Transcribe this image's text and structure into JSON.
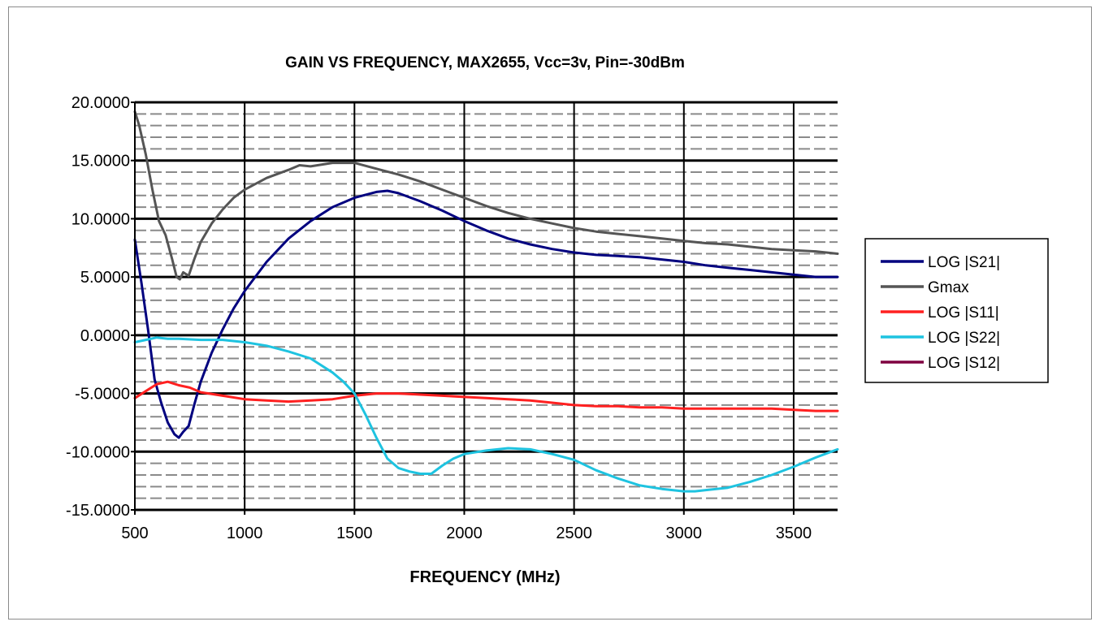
{
  "chart_data": {
    "type": "line",
    "title": "GAIN VS FREQUENCY, MAX2655, Vcc=3v, Pin=-30dBm",
    "xlabel": "FREQUENCY (MHz)",
    "ylabel": "",
    "xlim": [
      500,
      3700
    ],
    "ylim": [
      -15,
      20
    ],
    "x_ticks": [
      "500",
      "1000",
      "1500",
      "2000",
      "2500",
      "3000",
      "3500"
    ],
    "y_ticks": [
      "20.0000",
      "15.0000",
      "10.0000",
      "5.0000",
      "0.0000",
      "-5.0000",
      "-10.0000",
      "-15.0000"
    ],
    "grid": true,
    "legend_position": "right",
    "series": [
      {
        "name": "LOG |S21|",
        "color": "#00007f",
        "points": [
          [
            500,
            8.2
          ],
          [
            530,
            4.5
          ],
          [
            560,
            0.5
          ],
          [
            590,
            -3.8
          ],
          [
            620,
            -5.8
          ],
          [
            650,
            -7.5
          ],
          [
            680,
            -8.5
          ],
          [
            700,
            -8.8
          ],
          [
            720,
            -8.3
          ],
          [
            745,
            -7.8
          ],
          [
            770,
            -6.0
          ],
          [
            800,
            -4.0
          ],
          [
            850,
            -1.5
          ],
          [
            900,
            0.5
          ],
          [
            950,
            2.3
          ],
          [
            1000,
            3.8
          ],
          [
            1100,
            6.3
          ],
          [
            1200,
            8.3
          ],
          [
            1300,
            9.8
          ],
          [
            1400,
            11.0
          ],
          [
            1500,
            11.8
          ],
          [
            1600,
            12.3
          ],
          [
            1650,
            12.4
          ],
          [
            1700,
            12.2
          ],
          [
            1800,
            11.5
          ],
          [
            1900,
            10.7
          ],
          [
            2000,
            9.8
          ],
          [
            2100,
            9.0
          ],
          [
            2200,
            8.3
          ],
          [
            2300,
            7.8
          ],
          [
            2400,
            7.4
          ],
          [
            2500,
            7.1
          ],
          [
            2600,
            6.9
          ],
          [
            2700,
            6.8
          ],
          [
            2800,
            6.7
          ],
          [
            2900,
            6.5
          ],
          [
            3000,
            6.3
          ],
          [
            3100,
            6.0
          ],
          [
            3200,
            5.8
          ],
          [
            3300,
            5.6
          ],
          [
            3400,
            5.4
          ],
          [
            3500,
            5.2
          ],
          [
            3600,
            5.0
          ],
          [
            3700,
            5.0
          ]
        ]
      },
      {
        "name": "Gmax",
        "color": "#555555",
        "points": [
          [
            500,
            19.2
          ],
          [
            520,
            18.0
          ],
          [
            550,
            15.5
          ],
          [
            580,
            12.5
          ],
          [
            610,
            9.8
          ],
          [
            640,
            8.6
          ],
          [
            670,
            6.5
          ],
          [
            690,
            5.0
          ],
          [
            705,
            4.8
          ],
          [
            720,
            5.4
          ],
          [
            745,
            5.1
          ],
          [
            770,
            6.5
          ],
          [
            800,
            8.0
          ],
          [
            850,
            9.6
          ],
          [
            900,
            10.8
          ],
          [
            950,
            11.8
          ],
          [
            1000,
            12.5
          ],
          [
            1100,
            13.5
          ],
          [
            1200,
            14.2
          ],
          [
            1250,
            14.6
          ],
          [
            1300,
            14.5
          ],
          [
            1400,
            14.8
          ],
          [
            1500,
            14.8
          ],
          [
            1600,
            14.3
          ],
          [
            1700,
            13.8
          ],
          [
            1800,
            13.2
          ],
          [
            1900,
            12.5
          ],
          [
            2000,
            11.8
          ],
          [
            2100,
            11.1
          ],
          [
            2200,
            10.5
          ],
          [
            2300,
            10.0
          ],
          [
            2400,
            9.6
          ],
          [
            2500,
            9.2
          ],
          [
            2600,
            8.9
          ],
          [
            2700,
            8.7
          ],
          [
            2800,
            8.5
          ],
          [
            2900,
            8.3
          ],
          [
            3000,
            8.1
          ],
          [
            3100,
            7.9
          ],
          [
            3200,
            7.8
          ],
          [
            3300,
            7.6
          ],
          [
            3400,
            7.4
          ],
          [
            3500,
            7.3
          ],
          [
            3600,
            7.2
          ],
          [
            3700,
            7.0
          ]
        ]
      },
      {
        "name": "LOG |S11|",
        "color": "#ff2020",
        "points": [
          [
            500,
            -5.4
          ],
          [
            550,
            -4.8
          ],
          [
            600,
            -4.2
          ],
          [
            650,
            -4.0
          ],
          [
            700,
            -4.3
          ],
          [
            750,
            -4.5
          ],
          [
            800,
            -4.9
          ],
          [
            900,
            -5.2
          ],
          [
            1000,
            -5.5
          ],
          [
            1100,
            -5.6
          ],
          [
            1200,
            -5.7
          ],
          [
            1300,
            -5.6
          ],
          [
            1400,
            -5.5
          ],
          [
            1500,
            -5.2
          ],
          [
            1600,
            -5.0
          ],
          [
            1700,
            -5.0
          ],
          [
            1800,
            -5.1
          ],
          [
            1900,
            -5.2
          ],
          [
            2000,
            -5.3
          ],
          [
            2100,
            -5.4
          ],
          [
            2200,
            -5.5
          ],
          [
            2300,
            -5.6
          ],
          [
            2400,
            -5.8
          ],
          [
            2500,
            -6.0
          ],
          [
            2600,
            -6.1
          ],
          [
            2700,
            -6.1
          ],
          [
            2800,
            -6.2
          ],
          [
            2900,
            -6.2
          ],
          [
            3000,
            -6.3
          ],
          [
            3100,
            -6.3
          ],
          [
            3200,
            -6.3
          ],
          [
            3300,
            -6.3
          ],
          [
            3400,
            -6.3
          ],
          [
            3500,
            -6.4
          ],
          [
            3600,
            -6.5
          ],
          [
            3700,
            -6.5
          ]
        ]
      },
      {
        "name": "LOG |S22|",
        "color": "#1ec3e0",
        "points": [
          [
            500,
            -0.6
          ],
          [
            550,
            -0.4
          ],
          [
            600,
            -0.2
          ],
          [
            650,
            -0.3
          ],
          [
            700,
            -0.3
          ],
          [
            800,
            -0.4
          ],
          [
            900,
            -0.4
          ],
          [
            1000,
            -0.6
          ],
          [
            1100,
            -0.9
          ],
          [
            1200,
            -1.4
          ],
          [
            1300,
            -2.0
          ],
          [
            1400,
            -3.2
          ],
          [
            1450,
            -4.0
          ],
          [
            1500,
            -5.0
          ],
          [
            1550,
            -6.8
          ],
          [
            1600,
            -8.8
          ],
          [
            1650,
            -10.6
          ],
          [
            1700,
            -11.4
          ],
          [
            1750,
            -11.7
          ],
          [
            1800,
            -11.9
          ],
          [
            1850,
            -11.9
          ],
          [
            1900,
            -11.2
          ],
          [
            1950,
            -10.6
          ],
          [
            2000,
            -10.2
          ],
          [
            2100,
            -9.9
          ],
          [
            2200,
            -9.7
          ],
          [
            2300,
            -9.8
          ],
          [
            2400,
            -10.2
          ],
          [
            2500,
            -10.7
          ],
          [
            2600,
            -11.6
          ],
          [
            2700,
            -12.3
          ],
          [
            2800,
            -12.9
          ],
          [
            2900,
            -13.2
          ],
          [
            3000,
            -13.4
          ],
          [
            3050,
            -13.4
          ],
          [
            3100,
            -13.3
          ],
          [
            3200,
            -13.1
          ],
          [
            3300,
            -12.6
          ],
          [
            3400,
            -12.0
          ],
          [
            3500,
            -11.3
          ],
          [
            3600,
            -10.5
          ],
          [
            3700,
            -9.8
          ]
        ]
      },
      {
        "name": "LOG |S12|",
        "color": "#7f0040",
        "points": []
      }
    ]
  }
}
